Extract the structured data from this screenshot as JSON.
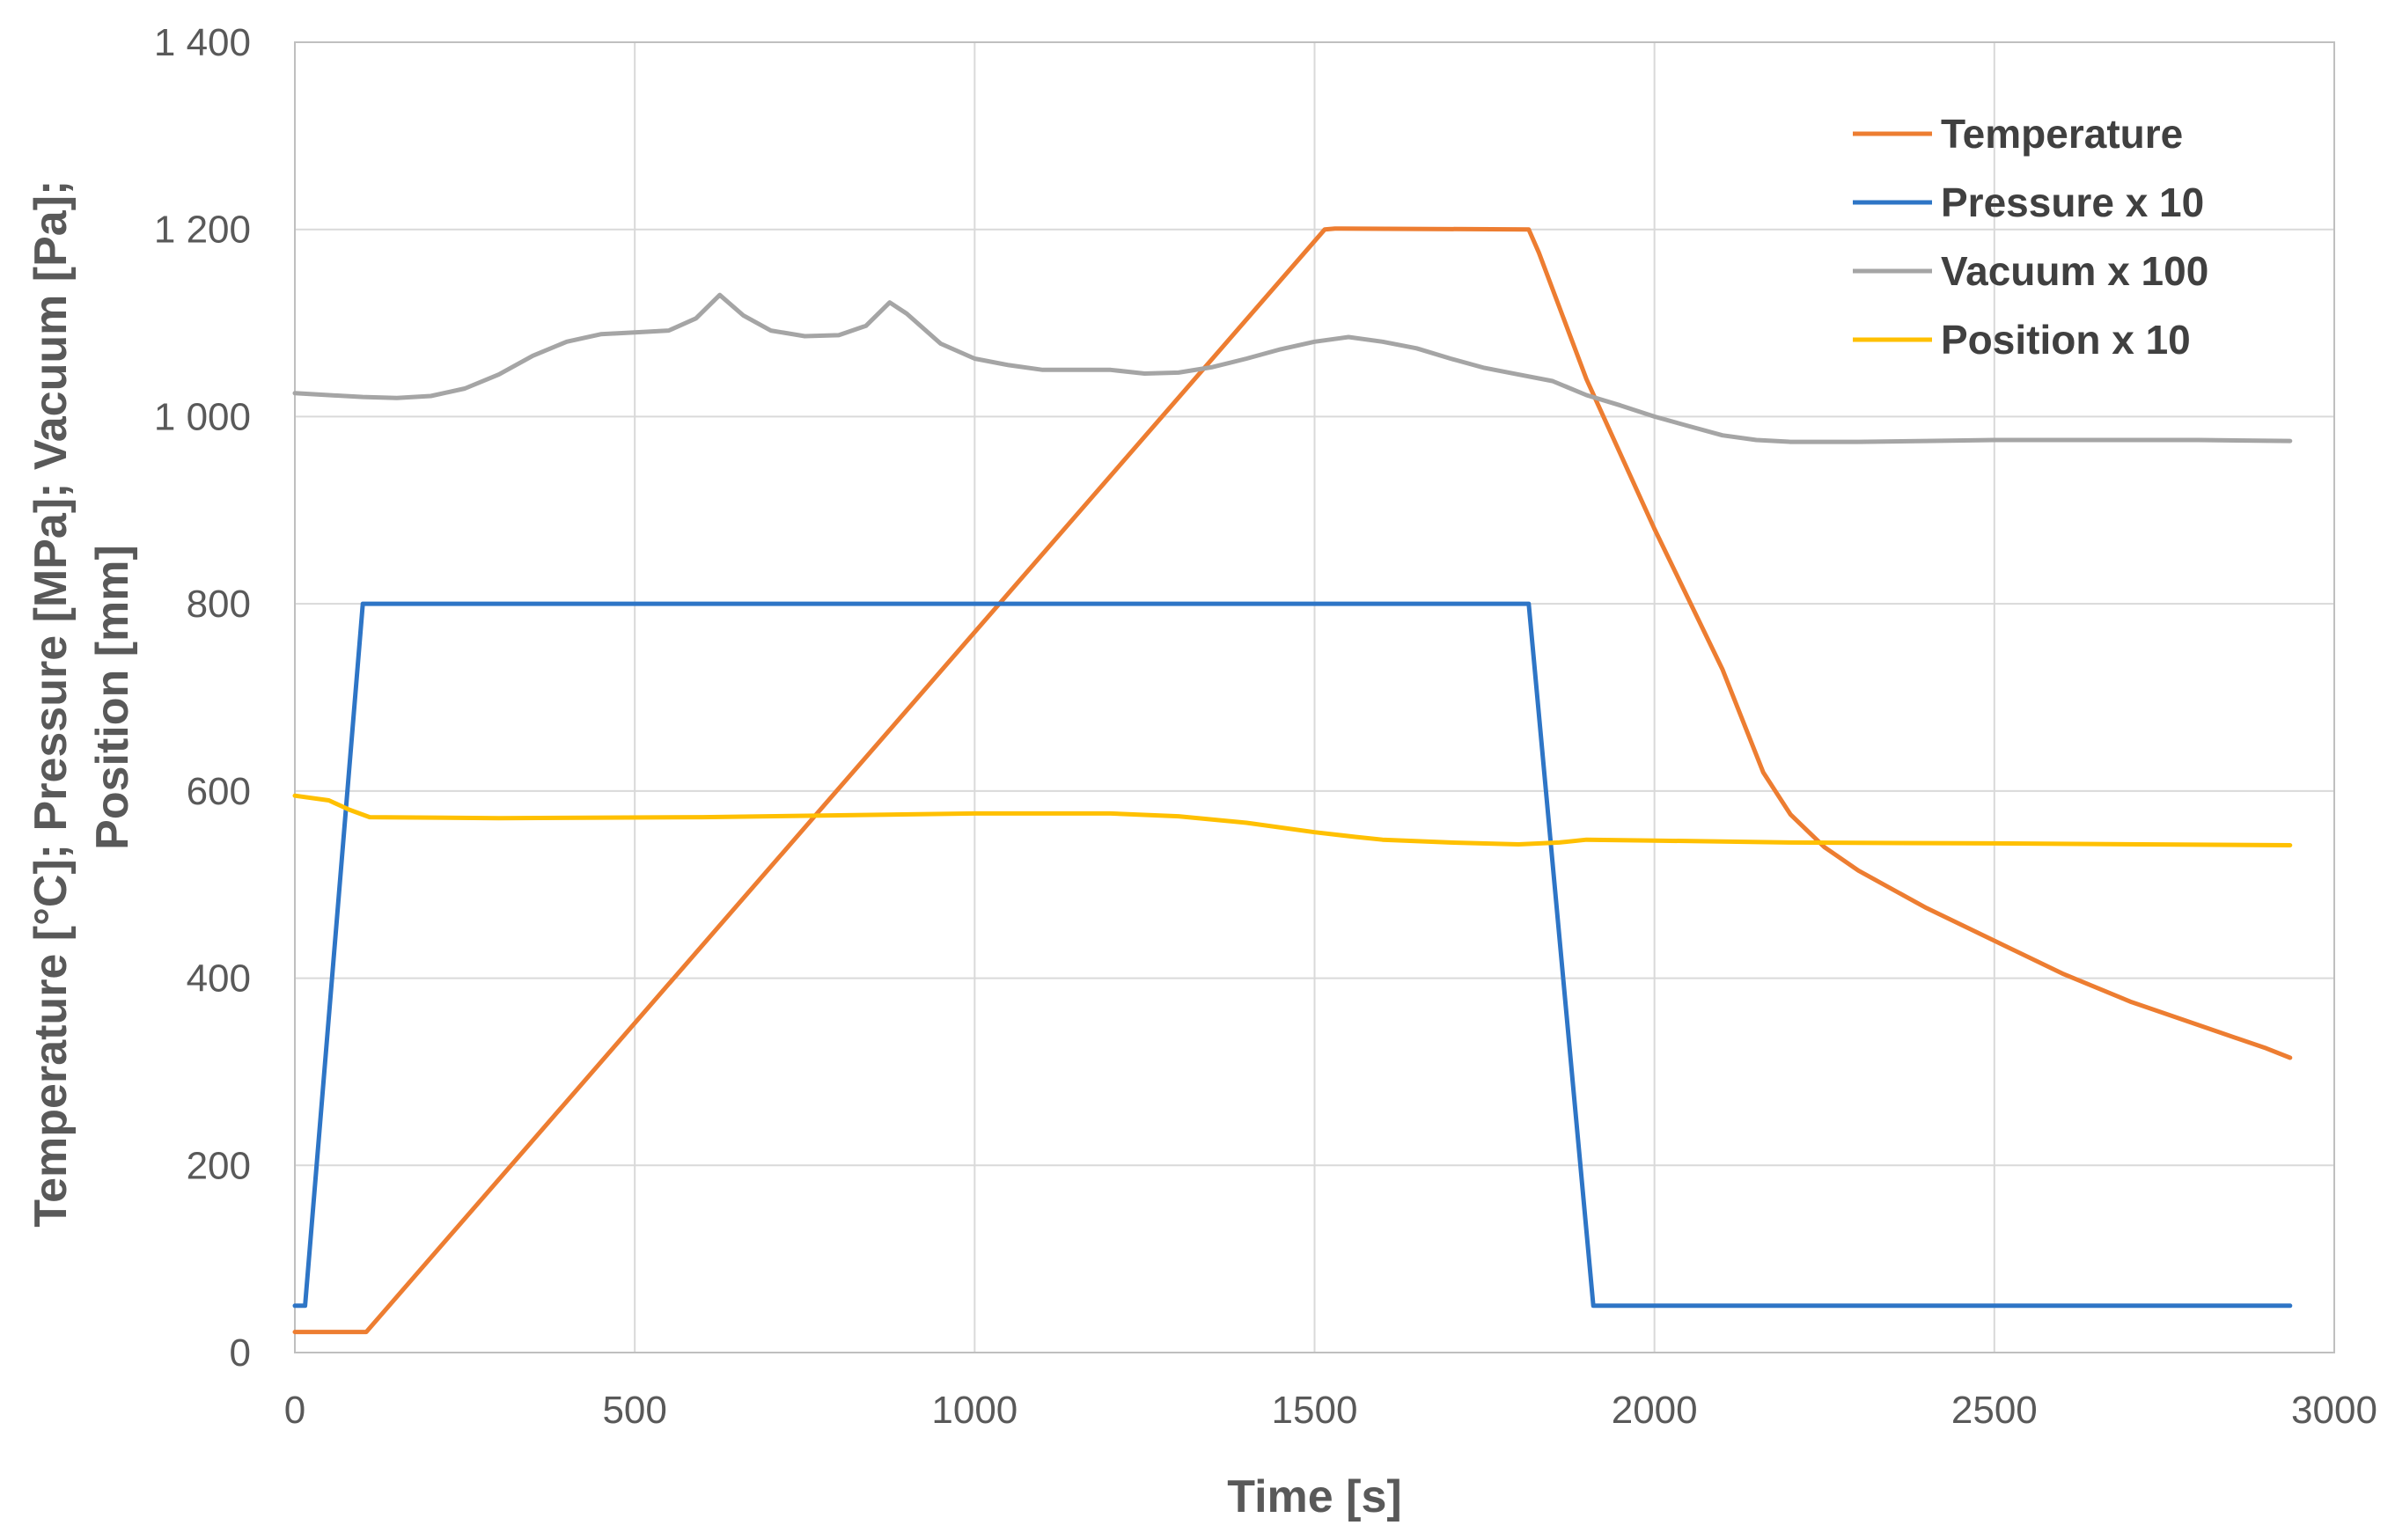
{
  "chart_data": {
    "type": "line",
    "title": "",
    "xlabel": "Time [s]",
    "ylabel_lines": [
      "Temperature [°C]; Pressure [MPa]; Vacuum [Pa];",
      "Position [mm]"
    ],
    "xlim": [
      0,
      3000
    ],
    "ylim": [
      0,
      1400
    ],
    "xticks": [
      0,
      500,
      1000,
      1500,
      2000,
      2500,
      3000
    ],
    "xtick_labels": [
      "0",
      "500",
      "1000",
      "1500",
      "2000",
      "2500",
      "3000"
    ],
    "yticks": [
      0,
      200,
      400,
      600,
      800,
      1000,
      1200,
      1400
    ],
    "ytick_labels": [
      "0",
      "200",
      "400",
      "600",
      "800",
      "1 000",
      "1 200",
      "1 400"
    ],
    "grid": true,
    "legend_position": "top-right",
    "colors": {
      "gridline": "#d9d9d9",
      "axis": "#bfbfbf"
    },
    "series": [
      {
        "name": "Temperature",
        "color": "#ED7D31",
        "points": [
          [
            0,
            22
          ],
          [
            105,
            22
          ],
          [
            1515,
            1200
          ],
          [
            1530,
            1201
          ],
          [
            1815,
            1200
          ],
          [
            1830,
            1175
          ],
          [
            1900,
            1040
          ],
          [
            2000,
            880
          ],
          [
            2100,
            730
          ],
          [
            2160,
            620
          ],
          [
            2200,
            575
          ],
          [
            2250,
            540
          ],
          [
            2300,
            515
          ],
          [
            2400,
            475
          ],
          [
            2500,
            440
          ],
          [
            2600,
            405
          ],
          [
            2700,
            375
          ],
          [
            2800,
            350
          ],
          [
            2900,
            325
          ],
          [
            2935,
            315
          ]
        ]
      },
      {
        "name": "Pressure x 10",
        "color": "#2E75C6",
        "points": [
          [
            0,
            50
          ],
          [
            15,
            50
          ],
          [
            100,
            800
          ],
          [
            1815,
            800
          ],
          [
            1910,
            50
          ],
          [
            2935,
            50
          ]
        ]
      },
      {
        "name": "Vacuum x 100",
        "color": "#A5A5A5",
        "points": [
          [
            0,
            1025
          ],
          [
            50,
            1023
          ],
          [
            100,
            1021
          ],
          [
            150,
            1020
          ],
          [
            200,
            1022
          ],
          [
            250,
            1030
          ],
          [
            300,
            1045
          ],
          [
            350,
            1065
          ],
          [
            400,
            1080
          ],
          [
            450,
            1088
          ],
          [
            500,
            1090
          ],
          [
            550,
            1092
          ],
          [
            590,
            1105
          ],
          [
            625,
            1130
          ],
          [
            660,
            1108
          ],
          [
            700,
            1092
          ],
          [
            750,
            1086
          ],
          [
            800,
            1087
          ],
          [
            840,
            1097
          ],
          [
            875,
            1122
          ],
          [
            900,
            1110
          ],
          [
            950,
            1078
          ],
          [
            1000,
            1062
          ],
          [
            1050,
            1055
          ],
          [
            1100,
            1050
          ],
          [
            1200,
            1050
          ],
          [
            1250,
            1046
          ],
          [
            1300,
            1047
          ],
          [
            1350,
            1053
          ],
          [
            1400,
            1062
          ],
          [
            1450,
            1072
          ],
          [
            1500,
            1080
          ],
          [
            1550,
            1085
          ],
          [
            1600,
            1080
          ],
          [
            1650,
            1073
          ],
          [
            1700,
            1062
          ],
          [
            1750,
            1052
          ],
          [
            1800,
            1045
          ],
          [
            1850,
            1038
          ],
          [
            1900,
            1023
          ],
          [
            1950,
            1012
          ],
          [
            2000,
            1000
          ],
          [
            2050,
            990
          ],
          [
            2100,
            980
          ],
          [
            2150,
            975
          ],
          [
            2200,
            973
          ],
          [
            2300,
            973
          ],
          [
            2400,
            974
          ],
          [
            2500,
            975
          ],
          [
            2600,
            975
          ],
          [
            2700,
            975
          ],
          [
            2800,
            975
          ],
          [
            2935,
            974
          ]
        ]
      },
      {
        "name": "Position x 10",
        "color": "#FFC000",
        "points": [
          [
            0,
            595
          ],
          [
            50,
            590
          ],
          [
            80,
            580
          ],
          [
            110,
            572
          ],
          [
            300,
            571
          ],
          [
            600,
            572
          ],
          [
            800,
            574
          ],
          [
            1000,
            576
          ],
          [
            1200,
            576
          ],
          [
            1300,
            573
          ],
          [
            1400,
            566
          ],
          [
            1500,
            556
          ],
          [
            1560,
            551
          ],
          [
            1600,
            548
          ],
          [
            1700,
            545
          ],
          [
            1800,
            543
          ],
          [
            1860,
            545
          ],
          [
            1900,
            548
          ],
          [
            2000,
            547
          ],
          [
            2200,
            545
          ],
          [
            2500,
            544
          ],
          [
            2935,
            542
          ]
        ]
      }
    ]
  }
}
